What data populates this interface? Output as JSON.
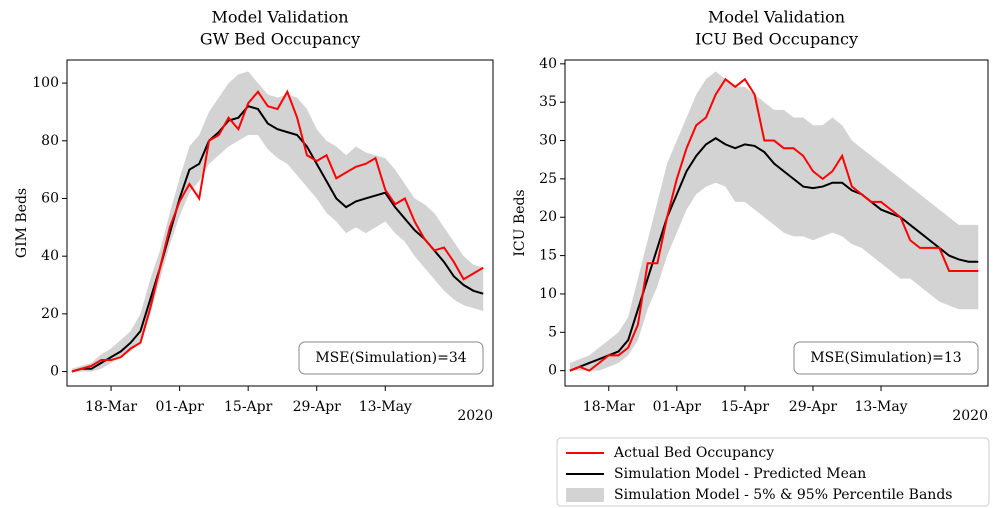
{
  "chart_data": [
    {
      "type": "line",
      "title": [
        "Model Validation",
        "GW Bed Occupancy"
      ],
      "ylabel": "GIM Beds",
      "x_offset_label": "2020",
      "x": [
        "2020-03-10",
        "2020-03-12",
        "2020-03-14",
        "2020-03-16",
        "2020-03-18",
        "2020-03-20",
        "2020-03-22",
        "2020-03-24",
        "2020-03-26",
        "2020-03-28",
        "2020-03-30",
        "2020-04-01",
        "2020-04-03",
        "2020-04-05",
        "2020-04-07",
        "2020-04-09",
        "2020-04-11",
        "2020-04-13",
        "2020-04-15",
        "2020-04-17",
        "2020-04-19",
        "2020-04-21",
        "2020-04-23",
        "2020-04-25",
        "2020-04-27",
        "2020-04-29",
        "2020-05-01",
        "2020-05-03",
        "2020-05-05",
        "2020-05-07",
        "2020-05-09",
        "2020-05-11",
        "2020-05-13",
        "2020-05-15",
        "2020-05-17",
        "2020-05-19",
        "2020-05-21",
        "2020-05-23",
        "2020-05-25",
        "2020-05-27",
        "2020-05-29",
        "2020-05-31",
        "2020-06-02"
      ],
      "series": [
        {
          "name": "Actual Bed Occupancy",
          "color": "#ff0000",
          "values": [
            0,
            1,
            2,
            4,
            4,
            5,
            8,
            10,
            22,
            36,
            50,
            59,
            65,
            60,
            80,
            82,
            88,
            84,
            93,
            97,
            92,
            91,
            97,
            88,
            75,
            73,
            75,
            67,
            69,
            71,
            72,
            74,
            63,
            58,
            60,
            52,
            46,
            42,
            43,
            38,
            32,
            34,
            36
          ]
        },
        {
          "name": "Simulation Model - Predicted Mean",
          "color": "#000000",
          "values": [
            0,
            1,
            1,
            3,
            5,
            7,
            10,
            14,
            25,
            36,
            48,
            60,
            70,
            72,
            80,
            83,
            87,
            88,
            92,
            91,
            86,
            84,
            83,
            82,
            78,
            72,
            66,
            60,
            57,
            59,
            60,
            61,
            62,
            57,
            53,
            49,
            46,
            42,
            38,
            33,
            30,
            28,
            27
          ]
        },
        {
          "name": "Simulation Model - 5% & 95% Percentile Bands",
          "type": "band",
          "color": "#d3d3d3",
          "lower": [
            0,
            0,
            0,
            1,
            3,
            5,
            7,
            10,
            20,
            32,
            44,
            54,
            62,
            66,
            72,
            75,
            78,
            80,
            82,
            82,
            77,
            74,
            72,
            68,
            64,
            60,
            55,
            52,
            48,
            50,
            48,
            50,
            52,
            48,
            45,
            40,
            36,
            32,
            28,
            25,
            23,
            22,
            21
          ],
          "upper": [
            1,
            2,
            3,
            6,
            8,
            11,
            14,
            20,
            32,
            42,
            55,
            67,
            78,
            82,
            90,
            95,
            100,
            103,
            104,
            100,
            96,
            95,
            96,
            95,
            91,
            84,
            80,
            78,
            75,
            78,
            76,
            75,
            74,
            70,
            65,
            60,
            58,
            55,
            50,
            45,
            40,
            37,
            36
          ]
        }
      ],
      "xlim": [
        "2020-03-09",
        "2020-06-04"
      ],
      "xticks": [
        {
          "value": "2020-03-18",
          "label": "18-Mar"
        },
        {
          "value": "2020-04-01",
          "label": "01-Apr"
        },
        {
          "value": "2020-04-15",
          "label": "15-Apr"
        },
        {
          "value": "2020-04-29",
          "label": "29-Apr"
        },
        {
          "value": "2020-05-13",
          "label": "13-May"
        }
      ],
      "ylim": [
        -5,
        108
      ],
      "yticks": [
        0,
        20,
        40,
        60,
        80,
        100
      ],
      "annotation": "MSE(Simulation)=34"
    },
    {
      "type": "line",
      "title": [
        "Model Validation",
        "ICU Bed Occupancy"
      ],
      "ylabel": "ICU Beds",
      "x_offset_label": "2020",
      "x": [
        "2020-03-10",
        "2020-03-12",
        "2020-03-14",
        "2020-03-16",
        "2020-03-18",
        "2020-03-20",
        "2020-03-22",
        "2020-03-24",
        "2020-03-26",
        "2020-03-28",
        "2020-03-30",
        "2020-04-01",
        "2020-04-03",
        "2020-04-05",
        "2020-04-07",
        "2020-04-09",
        "2020-04-11",
        "2020-04-13",
        "2020-04-15",
        "2020-04-17",
        "2020-04-19",
        "2020-04-21",
        "2020-04-23",
        "2020-04-25",
        "2020-04-27",
        "2020-04-29",
        "2020-05-01",
        "2020-05-03",
        "2020-05-05",
        "2020-05-07",
        "2020-05-09",
        "2020-05-11",
        "2020-05-13",
        "2020-05-15",
        "2020-05-17",
        "2020-05-19",
        "2020-05-21",
        "2020-05-23",
        "2020-05-25",
        "2020-05-27",
        "2020-05-29",
        "2020-05-31",
        "2020-06-02"
      ],
      "series": [
        {
          "name": "Actual Bed Occupancy",
          "color": "#ff0000",
          "values": [
            0,
            0.5,
            0,
            1,
            2,
            2,
            3,
            6,
            14,
            14,
            20,
            25,
            29,
            32,
            33,
            36,
            38,
            37,
            38,
            36,
            30,
            30,
            29,
            29,
            28,
            26,
            25,
            26,
            28,
            24,
            23,
            22,
            22,
            21,
            20,
            17,
            16,
            16,
            16,
            13,
            13,
            13,
            13
          ]
        },
        {
          "name": "Simulation Model - Predicted Mean",
          "color": "#000000",
          "values": [
            0,
            0.5,
            1,
            1.5,
            2,
            2.5,
            4,
            8,
            12,
            16,
            20,
            23,
            26,
            28,
            29.5,
            30.3,
            29.5,
            29,
            29.5,
            29.3,
            28.5,
            27,
            26,
            25,
            24,
            23.8,
            24,
            24.5,
            24.5,
            23.5,
            23,
            22,
            21,
            20.5,
            20,
            19,
            18,
            17,
            16,
            15,
            14.5,
            14.2,
            14.2
          ]
        },
        {
          "name": "Simulation Model - 5% & 95% Percentile Bands",
          "type": "band",
          "color": "#d3d3d3",
          "lower": [
            0,
            0,
            0,
            0,
            0.5,
            1,
            2,
            4,
            8,
            11,
            15,
            18,
            21,
            23,
            24,
            24.5,
            24,
            22,
            22,
            21,
            20,
            19,
            18,
            17.5,
            17.5,
            17,
            17.5,
            18,
            17.5,
            16.5,
            16,
            15,
            14,
            13,
            12,
            12,
            11,
            10,
            9,
            8.5,
            8,
            8,
            8
          ],
          "upper": [
            1,
            1.5,
            2,
            3,
            4,
            5,
            7,
            12,
            17,
            22,
            27,
            30,
            33,
            36,
            38,
            39,
            38,
            37,
            37,
            36,
            35,
            34,
            34,
            33,
            33,
            32,
            32,
            33,
            32,
            30,
            29,
            28,
            27,
            26,
            25,
            24,
            23,
            22,
            21,
            20,
            19,
            19,
            19
          ]
        }
      ],
      "xlim": [
        "2020-03-09",
        "2020-06-04"
      ],
      "xticks": [
        {
          "value": "2020-03-18",
          "label": "18-Mar"
        },
        {
          "value": "2020-04-01",
          "label": "01-Apr"
        },
        {
          "value": "2020-04-15",
          "label": "15-Apr"
        },
        {
          "value": "2020-04-29",
          "label": "29-Apr"
        },
        {
          "value": "2020-05-13",
          "label": "13-May"
        }
      ],
      "ylim": [
        -2,
        40.5
      ],
      "yticks": [
        0,
        5,
        10,
        15,
        20,
        25,
        30,
        35,
        40
      ],
      "annotation": "MSE(Simulation)=13"
    }
  ]
}
